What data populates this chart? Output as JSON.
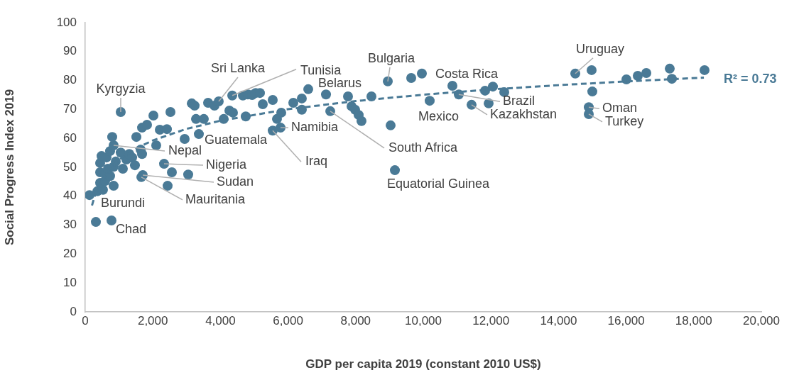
{
  "chart_data": {
    "type": "scatter",
    "xlabel": "GDP per capita 2019 (constant 2010 US$)",
    "ylabel": "Social Progress Index 2019",
    "xlim": [
      0,
      20000
    ],
    "xticks": [
      {
        "value": 0,
        "label": "0"
      },
      {
        "value": 2000,
        "label": "2,000"
      },
      {
        "value": 4000,
        "label": "4,000"
      },
      {
        "value": 6000,
        "label": "6,000"
      },
      {
        "value": 8000,
        "label": "8,000"
      },
      {
        "value": 10000,
        "label": "10,000"
      },
      {
        "value": 12000,
        "label": "12,000"
      },
      {
        "value": 14000,
        "label": "14,000"
      },
      {
        "value": 16000,
        "label": "16,000"
      },
      {
        "value": 18000,
        "label": "18,000"
      },
      {
        "value": 20000,
        "label": "20,000"
      }
    ],
    "ylim": [
      0,
      100
    ],
    "yticks": [
      0,
      10,
      20,
      30,
      40,
      50,
      60,
      70,
      80,
      90,
      100
    ],
    "grid": false,
    "legend": false,
    "series": [
      {
        "type": "scatter",
        "color": "#4a7a96",
        "marker": "circle",
        "x": [
          126,
          315,
          777,
          1050,
          357,
          525,
          441,
          588,
          840,
          441,
          588,
          735,
          672,
          441,
          483,
          630,
          840,
          903,
          735,
          840,
          798,
          1050,
          1113,
          1218,
          1302,
          1387,
          1470,
          1639,
          1681,
          1513,
          1660,
          1702,
          2100,
          2332,
          2437,
          2563,
          1681,
          1828,
          2017,
          2206,
          2416,
          2521,
          2941,
          3046,
          3151,
          3235,
          3277,
          3361,
          3508,
          3634,
          3823,
          3949,
          4096,
          4265,
          4370,
          4349,
          4664,
          4811,
          4937,
          5042,
          5168,
          4748,
          5252,
          5546,
          5546,
          5672,
          5777,
          5798,
          6155,
          6407,
          6407,
          6597,
          7122,
          7248,
          7773,
          7878,
          7983,
          8088,
          8172,
          8466,
          8950,
          9034,
          9160,
          9643,
          9958,
          10189,
          10861,
          11050,
          11428,
          11828,
          11933,
          12059,
          12395,
          14496,
          14979,
          15000,
          14895,
          14895,
          16008,
          16344,
          16597,
          17290,
          17353,
          18319
        ],
        "values": [
          40.4,
          31.1,
          31.6,
          69.1,
          41.7,
          42.2,
          44.6,
          45.3,
          43.6,
          48.3,
          47.8,
          47,
          49.5,
          51.5,
          53.9,
          53.4,
          50.2,
          52,
          55.6,
          57.6,
          60.5,
          55.1,
          49.5,
          52.7,
          54.6,
          53.4,
          50.7,
          56.1,
          54.6,
          60.5,
          46.6,
          47.3,
          57.6,
          51.2,
          43.6,
          48.3,
          63.7,
          64.7,
          67.9,
          63,
          63.2,
          69.1,
          59.8,
          47.5,
          72.1,
          71.3,
          66.7,
          61.5,
          66.7,
          72.3,
          71.3,
          72.8,
          66.7,
          69.6,
          68.9,
          74.8,
          74.8,
          75.2,
          75,
          75.7,
          75.7,
          67.6,
          71.8,
          73.3,
          62.7,
          66.7,
          63.7,
          68.9,
          72.3,
          73.8,
          69.9,
          77,
          75.2,
          69.4,
          74.5,
          71.1,
          69.9,
          68.1,
          66,
          74.5,
          79.7,
          64.5,
          49,
          80.9,
          82.4,
          73,
          78.2,
          75.2,
          71.6,
          76.5,
          72.1,
          77.9,
          76,
          82.4,
          83.6,
          76.2,
          70.8,
          68.4,
          80.4,
          81.6,
          82.6,
          84.1,
          80.6,
          83.6
        ]
      },
      {
        "type": "line",
        "color": "#4a7a96",
        "marker": "none",
        "line_style": "dashed",
        "x": [
          200,
          300,
          500,
          750,
          1000,
          1500,
          2000,
          3000,
          4000,
          6000,
          8000,
          10000,
          12000,
          14000,
          16000,
          18300
        ],
        "values": [
          36.8,
          40.8,
          45.8,
          49.7,
          52.6,
          56.5,
          59.3,
          63.3,
          66.1,
          70.1,
          72.9,
          75.1,
          76.9,
          78.4,
          79.7,
          81.0
        ]
      }
    ],
    "annotations": [
      {
        "text": "Kyrgyzia",
        "x": 1050,
        "y": 69.1
      },
      {
        "text": "Chad",
        "x": 777,
        "y": 31.6
      },
      {
        "text": "Burundi",
        "x": 126,
        "y": 40.4
      },
      {
        "text": "Nepal",
        "x": 840,
        "y": 57.6
      },
      {
        "text": "Nigeria",
        "x": 2332,
        "y": 51.2
      },
      {
        "text": "Sudan",
        "x": 1702,
        "y": 47.3
      },
      {
        "text": "Mauritania",
        "x": 1660,
        "y": 46.6
      },
      {
        "text": "Guatemala",
        "x": 3361,
        "y": 61.5
      },
      {
        "text": "Sri Lanka",
        "x": 3949,
        "y": 72.8
      },
      {
        "text": "Tunisia",
        "x": 4349,
        "y": 74.8
      },
      {
        "text": "Belarus",
        "x": 6597,
        "y": 77
      },
      {
        "text": "Bulgaria",
        "x": 8950,
        "y": 79.7
      },
      {
        "text": "Namibia",
        "x": 5777,
        "y": 63.7
      },
      {
        "text": "Iraq",
        "x": 5546,
        "y": 62.7
      },
      {
        "text": "South Africa",
        "x": 7248,
        "y": 69.4
      },
      {
        "text": "Equatorial Guinea",
        "x": 9160,
        "y": 49
      },
      {
        "text": "Costa Rica",
        "x": 10861,
        "y": 78.2
      },
      {
        "text": "Mexico",
        "x": 10189,
        "y": 73
      },
      {
        "text": "Brazil",
        "x": 11050,
        "y": 75.2
      },
      {
        "text": "Kazakhstan",
        "x": 11428,
        "y": 71.6
      },
      {
        "text": "Uruguay",
        "x": 14496,
        "y": 82.4
      },
      {
        "text": "Oman",
        "x": 14895,
        "y": 70.8
      },
      {
        "text": "Turkey",
        "x": 14895,
        "y": 68.4
      },
      {
        "text": "R² = 0.73",
        "x": 18300,
        "y": 81.0
      }
    ]
  }
}
